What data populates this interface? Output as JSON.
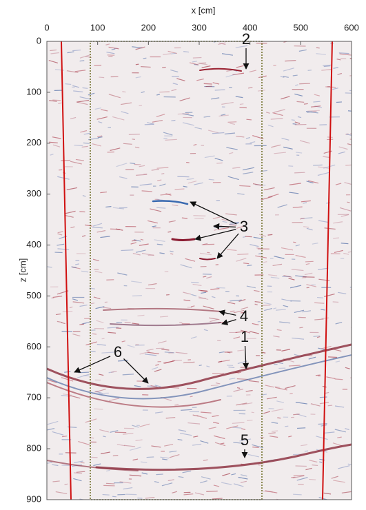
{
  "chart_data": {
    "type": "image",
    "xlabel": "x [cm]",
    "ylabel": "z [cm]",
    "xlim": [
      0,
      600
    ],
    "ylim": [
      0,
      900
    ],
    "xticks": [
      0,
      100,
      200,
      300,
      400,
      500,
      600
    ],
    "yticks": [
      0,
      100,
      200,
      300,
      400,
      500,
      600,
      700,
      800,
      900
    ],
    "annotations": [
      "2",
      "3",
      "4",
      "1",
      "6",
      "5"
    ]
  }
}
